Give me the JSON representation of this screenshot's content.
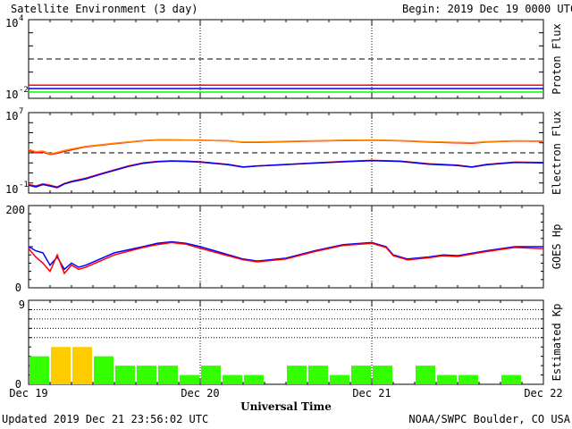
{
  "header": {
    "title": "Satellite Environment (3 day)",
    "begin": "Begin:  2019 Dec 19 0000 UTC"
  },
  "footer": {
    "updated": "Updated 2019 Dec 21 23:56:02 UTC",
    "credit": "NOAA/SWPC Boulder, CO USA",
    "xlabel": "Universal Time"
  },
  "x_ticks": [
    "Dec 19",
    "Dec 20",
    "Dec 21",
    "Dec 22"
  ],
  "chart_data": [
    {
      "type": "line",
      "ylabel": "Proton Flux",
      "yscale": "log",
      "ylim": [
        0.01,
        10000
      ],
      "y_tick_labels": [
        {
          "base": "10",
          "exp": "4"
        },
        {
          "base": "10",
          "exp": "-2"
        }
      ],
      "threshold": 10,
      "x_unit": "hours since Dec 19 0000 UTC",
      "xlim": [
        0,
        72
      ],
      "series": [
        {
          "color": "#ff0000",
          "values_x": [
            0,
            12,
            24,
            36,
            48,
            60,
            72
          ],
          "values_y": [
            0.1,
            0.1,
            0.1,
            0.1,
            0.1,
            0.1,
            0.1
          ]
        },
        {
          "color": "#0000ff",
          "values_x": [
            0,
            12,
            24,
            36,
            48,
            60,
            72
          ],
          "values_y": [
            0.055,
            0.055,
            0.055,
            0.055,
            0.055,
            0.055,
            0.055
          ]
        },
        {
          "color": "#00ff00",
          "values_x": [
            0,
            12,
            24,
            36,
            48,
            60,
            72
          ],
          "values_y": [
            0.03,
            0.03,
            0.03,
            0.03,
            0.03,
            0.03,
            0.03
          ]
        }
      ]
    },
    {
      "type": "line",
      "ylabel": "Electron Flux",
      "yscale": "log",
      "ylim": [
        0.1,
        10000000
      ],
      "y_tick_labels": [
        {
          "base": "10",
          "exp": "7"
        },
        {
          "base": "10",
          "exp": "-1"
        }
      ],
      "threshold": 1000,
      "xlim": [
        0,
        72
      ],
      "series": [
        {
          "color": "#ff0000",
          "values_x": [
            0,
            1,
            2,
            3,
            4,
            5,
            6,
            8,
            12,
            16,
            18,
            20,
            24,
            28,
            30,
            32,
            36,
            40,
            44,
            48,
            52,
            56,
            60,
            62,
            64,
            68,
            72
          ],
          "values_y": [
            1700,
            1000,
            1200,
            700,
            900,
            1400,
            2000,
            4000,
            8000,
            16000,
            19000,
            19000,
            18000,
            16000,
            11000,
            11000,
            13000,
            15000,
            17000,
            18000,
            16000,
            12000,
            10000,
            9000,
            12000,
            15000,
            14000
          ]
        },
        {
          "color": "#ff8c00",
          "values_x": [
            0,
            1,
            2,
            3,
            4,
            5,
            6,
            8,
            12,
            16,
            18,
            20,
            24,
            28,
            30,
            32,
            36,
            40,
            44,
            48,
            52,
            56,
            60,
            62,
            64,
            68,
            72
          ],
          "values_y": [
            2200,
            1300,
            1500,
            800,
            1100,
            1700,
            2400,
            4500,
            9000,
            17000,
            20000,
            20000,
            18000,
            15000,
            12000,
            12000,
            14000,
            16000,
            18000,
            19000,
            17000,
            13000,
            11000,
            10000,
            13000,
            16000,
            15000
          ]
        },
        {
          "color": "#ff0000",
          "values_x": [
            0,
            1,
            2,
            3,
            4,
            5,
            6,
            8,
            10,
            12,
            14,
            16,
            18,
            20,
            22,
            24,
            28,
            30,
            32,
            36,
            40,
            44,
            48,
            52,
            56,
            60,
            62,
            64,
            68,
            72
          ],
          "values_y": [
            0.7,
            0.5,
            0.8,
            0.6,
            0.4,
            0.9,
            1.5,
            3,
            8,
            20,
            50,
            100,
            140,
            160,
            150,
            130,
            70,
            40,
            50,
            70,
            100,
            140,
            180,
            150,
            80,
            60,
            40,
            70,
            120,
            110
          ]
        },
        {
          "color": "#0000ff",
          "values_x": [
            0,
            1,
            2,
            3,
            4,
            5,
            6,
            8,
            10,
            12,
            14,
            16,
            18,
            20,
            22,
            24,
            28,
            30,
            32,
            36,
            40,
            44,
            48,
            52,
            56,
            60,
            62,
            64,
            68,
            72
          ],
          "values_y": [
            0.6,
            0.4,
            0.7,
            0.5,
            0.35,
            0.8,
            1.3,
            2.6,
            7,
            18,
            45,
            90,
            130,
            150,
            140,
            120,
            65,
            38,
            48,
            68,
            95,
            130,
            165,
            140,
            75,
            55,
            38,
            65,
            110,
            100
          ]
        }
      ]
    },
    {
      "type": "line",
      "ylabel": "GOES Hp",
      "ylim": [
        0,
        200
      ],
      "y_tick_labels": [
        "200",
        "0"
      ],
      "xlim": [
        0,
        72
      ],
      "series": [
        {
          "color": "#0000ff",
          "values_x": [
            0,
            1,
            2,
            3,
            4,
            5,
            6,
            7,
            8,
            10,
            12,
            16,
            18,
            20,
            22,
            24,
            27,
            30,
            32,
            36,
            40,
            44,
            48,
            50,
            51,
            53,
            56,
            58,
            60,
            64,
            68,
            72
          ],
          "values_y": [
            100,
            90,
            85,
            55,
            75,
            45,
            60,
            50,
            55,
            70,
            85,
            100,
            108,
            112,
            108,
            100,
            85,
            70,
            65,
            72,
            90,
            105,
            110,
            100,
            80,
            70,
            75,
            80,
            78,
            90,
            100,
            100
          ]
        },
        {
          "color": "#ff0000",
          "values_x": [
            0,
            1,
            2,
            3,
            4,
            5,
            6,
            7,
            8,
            10,
            12,
            16,
            18,
            20,
            22,
            24,
            27,
            30,
            32,
            36,
            40,
            44,
            48,
            50,
            51,
            53,
            56,
            58,
            60,
            64,
            68,
            72
          ],
          "values_y": [
            95,
            75,
            60,
            40,
            80,
            35,
            55,
            45,
            50,
            65,
            80,
            98,
            105,
            110,
            106,
            96,
            82,
            68,
            63,
            70,
            88,
            103,
            108,
            98,
            78,
            68,
            73,
            78,
            76,
            88,
            98,
            95
          ]
        }
      ]
    },
    {
      "type": "bar",
      "ylabel": "Estimated Kp",
      "ylim": [
        0,
        9
      ],
      "y_tick_labels": [
        "9",
        "0"
      ],
      "bin_hours": 3,
      "values": [
        3,
        4,
        4,
        3,
        2,
        2,
        2,
        1,
        2,
        1,
        1,
        0,
        2,
        2,
        1,
        2,
        2,
        0,
        2,
        1,
        1,
        0,
        1,
        0
      ],
      "colors": [
        "#33ff00",
        "#ffcc00",
        "#ffcc00",
        "#33ff00",
        "#33ff00",
        "#33ff00",
        "#33ff00",
        "#33ff00",
        "#33ff00",
        "#33ff00",
        "#33ff00",
        "#33ff00",
        "#33ff00",
        "#33ff00",
        "#33ff00",
        "#33ff00",
        "#33ff00",
        "#33ff00",
        "#33ff00",
        "#33ff00",
        "#33ff00",
        "#33ff00",
        "#33ff00",
        "#33ff00"
      ]
    }
  ]
}
